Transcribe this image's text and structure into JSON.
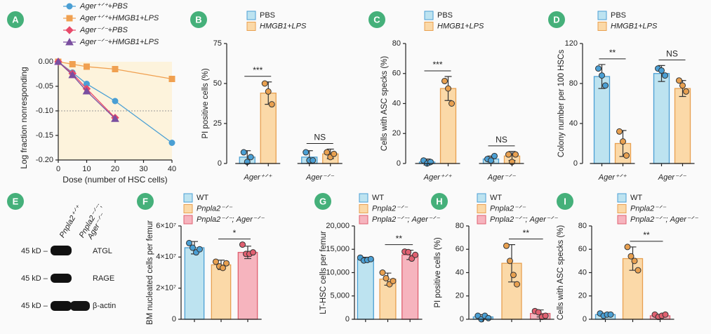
{
  "chart_data": [
    {
      "panel": "A",
      "type": "line",
      "xlabel": "Dose (number of HSC cells)",
      "ylabel": "Log fraction nonresponding",
      "xlim": [
        0,
        40
      ],
      "xticks": [
        0,
        10,
        20,
        30,
        40
      ],
      "ylim": [
        -0.2,
        0
      ],
      "yticks": [
        {
          "value": 0,
          "label": "0.00"
        },
        {
          "value": -0.05,
          "label": "-0.05"
        },
        {
          "value": -0.1,
          "label": "-0.10"
        },
        {
          "value": -0.15,
          "label": "-0.15"
        },
        {
          "value": -0.2,
          "label": "-0.20"
        }
      ],
      "reference_line": -0.1,
      "background": "#fdf3dc",
      "series": [
        {
          "name": "Ager⁺ᐟ⁺+PBS",
          "color": "#4a9fd4",
          "marker": "circle",
          "x": [
            0,
            5,
            10,
            20,
            40
          ],
          "values": [
            0,
            -0.022,
            -0.045,
            -0.08,
            -0.165
          ]
        },
        {
          "name": "Ager⁺ᐟ⁺+HMGB1+LPS",
          "color": "#f0a050",
          "marker": "square",
          "x": [
            0,
            5,
            10,
            20,
            40
          ],
          "values": [
            0,
            -0.005,
            -0.01,
            -0.015,
            -0.035
          ]
        },
        {
          "name": "Ager⁻ᐟ⁻+PBS",
          "color": "#e84a6a",
          "marker": "diamond",
          "x": [
            0,
            5,
            10,
            20
          ],
          "values": [
            0,
            -0.024,
            -0.055,
            -0.114
          ]
        },
        {
          "name": "Ager⁻ᐟ⁻+HMGB1+LPS",
          "color": "#7a4fa0",
          "marker": "triangle",
          "x": [
            0,
            5,
            10,
            20
          ],
          "values": [
            0,
            -0.027,
            -0.06,
            -0.116
          ]
        }
      ]
    },
    {
      "panel": "B",
      "type": "bar",
      "ylabel": "PI positive cells (%)",
      "ylim": [
        0,
        75
      ],
      "yticks": [
        0,
        25,
        50,
        75
      ],
      "categories": [
        "Ager⁺ᐟ⁺",
        "Ager⁻ᐟ⁻"
      ],
      "significance": [
        "***",
        "NS"
      ],
      "series": [
        {
          "name": "PBS",
          "color": "#bde3f0",
          "edgecolor": "#4a9fd4",
          "values": [
            4,
            4
          ],
          "errors": [
            4,
            4
          ],
          "points": [
            [
              7,
              1,
              4
            ],
            [
              7,
              2,
              2
            ]
          ]
        },
        {
          "name": "HMGB1+LPS",
          "color": "#fbd9a8",
          "edgecolor": "#e8a050",
          "values": [
            44,
            6
          ],
          "errors": [
            7,
            3
          ],
          "points": [
            [
              50,
              45,
              37
            ],
            [
              7,
              4,
              6
            ]
          ]
        }
      ]
    },
    {
      "panel": "C",
      "type": "bar",
      "ylabel": "Cells with ASC specks (%)",
      "ylim": [
        0,
        80
      ],
      "yticks": [
        0,
        20,
        40,
        60,
        80
      ],
      "categories": [
        "Ager⁺ᐟ⁺",
        "Ager⁻ᐟ⁻"
      ],
      "significance": [
        "***",
        "NS"
      ],
      "series": [
        {
          "name": "PBS",
          "color": "#bde3f0",
          "edgecolor": "#4a9fd4",
          "values": [
            1,
            3
          ],
          "errors": [
            2,
            2
          ],
          "points": [
            [
              2,
              0,
              1
            ],
            [
              3,
              2,
              5
            ]
          ]
        },
        {
          "name": "HMGB1+LPS",
          "color": "#fbd9a8",
          "edgecolor": "#e8a050",
          "values": [
            50,
            5
          ],
          "errors": [
            8,
            3
          ],
          "points": [
            [
              55,
              50,
              40
            ],
            [
              6,
              1,
              6
            ]
          ]
        }
      ]
    },
    {
      "panel": "D",
      "type": "bar",
      "ylabel": "Colony number per 100 HSCs",
      "ylim": [
        0,
        120
      ],
      "yticks": [
        0,
        40,
        80,
        120
      ],
      "categories": [
        "Ager⁺ᐟ⁺",
        "Ager⁻ᐟ⁻"
      ],
      "significance": [
        "**",
        "NS"
      ],
      "series": [
        {
          "name": "PBS",
          "color": "#bde3f0",
          "edgecolor": "#4a9fd4",
          "values": [
            87,
            90
          ],
          "errors": [
            12,
            8
          ],
          "points": [
            [
              95,
              88,
              78
            ],
            [
              95,
              93,
              88
            ]
          ]
        },
        {
          "name": "HMGB1+LPS",
          "color": "#fbd9a8",
          "edgecolor": "#e8a050",
          "values": [
            20,
            75
          ],
          "errors": [
            13,
            8
          ],
          "points": [
            [
              32,
              22,
              8
            ],
            [
              83,
              78,
              72
            ]
          ]
        }
      ]
    },
    {
      "panel": "F",
      "type": "bar",
      "ylabel": "BM nucleated cells per femur",
      "ylim": [
        0,
        60000000
      ],
      "yticks": [
        0,
        {
          "value": 20000000,
          "label": "2×10⁷"
        },
        {
          "value": 40000000,
          "label": "4×10⁷"
        },
        {
          "value": 60000000,
          "label": "6×10⁷"
        }
      ],
      "categories": [
        null
      ],
      "significance": [
        "*"
      ],
      "series": [
        {
          "name": "WT",
          "color": "#bde3f0",
          "edgecolor": "#4a9fd4",
          "values": [
            46000000
          ],
          "errors": [
            4000000
          ],
          "points": [
            [
              49000000,
              46000000,
              43000000,
              45000000
            ]
          ]
        },
        {
          "name": "Pnpla2⁻ᐟ⁻",
          "color": "#fbd9a8",
          "edgecolor": "#e8a050",
          "values": [
            35000000
          ],
          "errors": [
            3000000
          ],
          "points": [
            [
              37000000,
              34000000,
              33000000,
              36000000
            ]
          ]
        },
        {
          "name": "Pnpla2⁻ᐟ⁻; Ager⁻ᐟ⁻",
          "color": "#f6b4be",
          "edgecolor": "#e06070",
          "values": [
            43000000
          ],
          "errors": [
            4000000
          ],
          "points": [
            [
              48000000,
              42000000,
              42000000,
              43000000
            ]
          ]
        }
      ]
    },
    {
      "panel": "G",
      "type": "bar",
      "ylabel": "LT-HSC cells per femur",
      "ylim": [
        0,
        20000
      ],
      "yticks": [
        0,
        {
          "value": 5000,
          "label": "5,000"
        },
        {
          "value": 10000,
          "label": "10,000"
        },
        {
          "value": 15000,
          "label": "15,000"
        },
        {
          "value": 20000,
          "label": "20,000"
        }
      ],
      "categories": [
        null
      ],
      "significance": [
        "**"
      ],
      "series": [
        {
          "name": "WT",
          "color": "#bde3f0",
          "edgecolor": "#4a9fd4",
          "values": [
            12800
          ],
          "errors": [
            500
          ],
          "points": [
            [
              13200,
              12600,
              12700,
              12900
            ]
          ]
        },
        {
          "name": "Pnpla2⁻ᐟ⁻",
          "color": "#fbd9a8",
          "edgecolor": "#e8a050",
          "values": [
            8600
          ],
          "errors": [
            1300
          ],
          "points": [
            [
              10000,
              8800,
              7500,
              8200
            ]
          ]
        },
        {
          "name": "Pnpla2⁻ᐟ⁻; Ager⁻ᐟ⁻",
          "color": "#f6b4be",
          "edgecolor": "#e06070",
          "values": [
            13800
          ],
          "errors": [
            1000
          ],
          "points": [
            [
              14500,
              14400,
              13000,
              13800
            ]
          ]
        }
      ]
    },
    {
      "panel": "H",
      "type": "bar",
      "ylabel": "PI positive cells (%)",
      "ylim": [
        0,
        80
      ],
      "yticks": [
        0,
        20,
        40,
        60,
        80
      ],
      "categories": [
        null
      ],
      "significance": [
        "**"
      ],
      "series": [
        {
          "name": "WT",
          "color": "#bde3f0",
          "edgecolor": "#4a9fd4",
          "values": [
            2
          ],
          "errors": [
            2
          ],
          "points": [
            [
              3,
              0,
              3,
              1
            ]
          ]
        },
        {
          "name": "Pnpla2⁻ᐟ⁻",
          "color": "#fbd9a8",
          "edgecolor": "#e8a050",
          "values": [
            48
          ],
          "errors": [
            16
          ],
          "points": [
            [
              63,
              50,
              38,
              30
            ]
          ]
        },
        {
          "name": "Pnpla2⁻ᐟ⁻; Ager⁻ᐟ⁻",
          "color": "#f6b4be",
          "edgecolor": "#e06070",
          "values": [
            5
          ],
          "errors": [
            3
          ],
          "points": [
            [
              7,
              6,
              2,
              3
            ]
          ]
        }
      ]
    },
    {
      "panel": "I",
      "type": "bar",
      "ylabel": "Cells with ASC specks (%)",
      "ylim": [
        0,
        80
      ],
      "yticks": [
        0,
        20,
        40,
        60,
        80
      ],
      "categories": [
        null
      ],
      "significance": [
        "**"
      ],
      "series": [
        {
          "name": "WT",
          "color": "#bde3f0",
          "edgecolor": "#4a9fd4",
          "values": [
            4
          ],
          "errors": [
            1
          ],
          "points": [
            [
              5,
              3,
              4,
              4
            ]
          ]
        },
        {
          "name": "Pnpla2⁻ᐟ⁻",
          "color": "#fbd9a8",
          "edgecolor": "#e8a050",
          "values": [
            52
          ],
          "errors": [
            10
          ],
          "points": [
            [
              62,
              54,
              50,
              42
            ]
          ]
        },
        {
          "name": "Pnpla2⁻ᐟ⁻; Ager⁻ᐟ⁻",
          "color": "#f6b4be",
          "edgecolor": "#e06070",
          "values": [
            3
          ],
          "errors": [
            1
          ],
          "points": [
            [
              4,
              2,
              3,
              4
            ]
          ]
        }
      ]
    }
  ],
  "blot": {
    "panel": "E",
    "columns": [
      "Pnpla2⁺ᐟ⁺",
      [
        "Pnpla2⁻ᐟ⁻;",
        "Ager⁻ᐟ⁻"
      ]
    ],
    "rows": [
      {
        "marker": "45 kD –",
        "protein": "ATGL"
      },
      {
        "marker": "45 kD –",
        "protein": "RAGE"
      },
      {
        "marker": "45 kD –",
        "protein": "β-actin"
      }
    ]
  }
}
